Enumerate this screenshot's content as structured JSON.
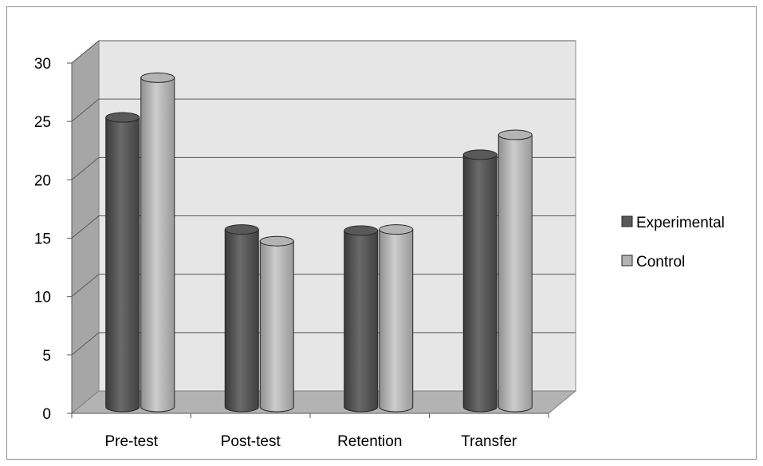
{
  "chart_data": {
    "type": "bar",
    "style": "3d-cylinder",
    "title": "",
    "xlabel": "",
    "ylabel": "",
    "categories": [
      "Pre-test",
      "Post-test",
      "Retention",
      "Transfer"
    ],
    "series": [
      {
        "name": "Experimental",
        "values": [
          24.8,
          15.2,
          15.1,
          21.6
        ],
        "color": "#595959"
      },
      {
        "name": "Control",
        "values": [
          28.2,
          14.2,
          15.2,
          23.3
        ],
        "color": "#b3b3b3"
      }
    ],
    "ylim": [
      0,
      30
    ],
    "y_ticks": [
      "0",
      "5",
      "10",
      "15",
      "20",
      "25",
      "30"
    ],
    "grid": true,
    "legend_position": "right",
    "colors": {
      "back_wall": "#e6e6e6",
      "side_wall": "#a6a6a6",
      "floor": "#b3b3b3",
      "gridline": "#595959"
    }
  }
}
